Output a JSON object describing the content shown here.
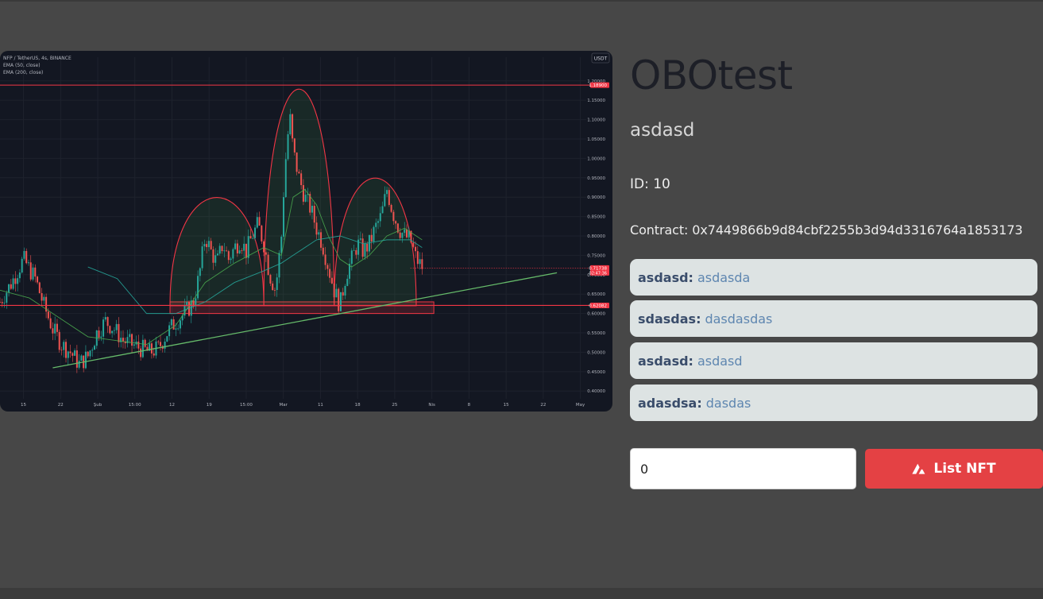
{
  "nft": {
    "title": "OBOtest",
    "description": "asdasd",
    "id_text": "ID: 10",
    "contract_text": "Contract: 0x7449866b9d84cbf2255b3d94d3316764a1853173",
    "attributes": [
      {
        "key": "asdasd:",
        "value": "asdasda"
      },
      {
        "key": "sdasdas:",
        "value": "dasdasdas"
      },
      {
        "key": "asdasd:",
        "value": "asdasd"
      },
      {
        "key": "adasdsa:",
        "value": "dasdas"
      }
    ]
  },
  "listing": {
    "price_value": "0",
    "button_label": "List NFT",
    "button_icon": "avalanche-logo-icon"
  },
  "colors": {
    "page_bg": "#474747",
    "accent_red": "#e44144",
    "attribute_bg": "#dde3e3",
    "chart_bg": "#131722"
  },
  "chart_data": {
    "type": "candlestick",
    "title": "NFP / TetherUS, 4s, BINANCE",
    "indicators": [
      "EMA (50, close)",
      "EMA (200, close)"
    ],
    "currency": "USDT",
    "x_ticks": [
      "15",
      "22",
      "Şub",
      "15:00",
      "12",
      "19",
      "15:00",
      "Mar",
      "11",
      "18",
      "25",
      "Nis",
      "8",
      "15",
      "22",
      "May"
    ],
    "y_ticks": [
      1.2,
      1.15,
      1.1,
      1.05,
      1.0,
      0.95,
      0.9,
      0.85,
      0.8,
      0.75,
      0.7,
      0.65,
      0.6,
      0.55,
      0.5,
      0.45,
      0.4
    ],
    "ylim": [
      0.38,
      1.22
    ],
    "price_labels": [
      {
        "text": "1.18900",
        "value": 1.189
      },
      {
        "text": "0.71738",
        "value": 0.71738,
        "sub": "02:47:36"
      },
      {
        "text": "0.62082",
        "value": 0.62082
      }
    ],
    "close_path": [
      [
        0,
        0.63
      ],
      [
        4,
        0.68
      ],
      [
        8,
        0.74
      ],
      [
        12,
        0.69
      ],
      [
        15,
        0.62
      ],
      [
        18,
        0.56
      ],
      [
        21,
        0.52
      ],
      [
        24,
        0.5
      ],
      [
        27,
        0.47
      ],
      [
        30,
        0.49
      ],
      [
        33,
        0.55
      ],
      [
        36,
        0.58
      ],
      [
        39,
        0.56
      ],
      [
        42,
        0.53
      ],
      [
        45,
        0.52
      ],
      [
        48,
        0.51
      ],
      [
        51,
        0.5
      ],
      [
        54,
        0.51
      ],
      [
        57,
        0.55
      ],
      [
        60,
        0.58
      ],
      [
        63,
        0.6
      ],
      [
        66,
        0.63
      ],
      [
        68,
        0.7
      ],
      [
        70,
        0.8
      ],
      [
        72,
        0.76
      ],
      [
        74,
        0.73
      ],
      [
        76,
        0.78
      ],
      [
        78,
        0.74
      ],
      [
        80,
        0.77
      ],
      [
        82,
        0.79
      ],
      [
        84,
        0.76
      ],
      [
        86,
        0.8
      ],
      [
        88,
        0.83
      ],
      [
        90,
        0.78
      ],
      [
        92,
        0.7
      ],
      [
        94,
        0.66
      ],
      [
        96,
        0.8
      ],
      [
        97,
        0.95
      ],
      [
        98,
        1.05
      ],
      [
        99,
        1.1
      ],
      [
        100,
        1.02
      ],
      [
        102,
        0.95
      ],
      [
        104,
        0.9
      ],
      [
        106,
        0.87
      ],
      [
        108,
        0.82
      ],
      [
        110,
        0.78
      ],
      [
        112,
        0.72
      ],
      [
        114,
        0.66
      ],
      [
        116,
        0.62
      ],
      [
        118,
        0.7
      ],
      [
        120,
        0.74
      ],
      [
        122,
        0.78
      ],
      [
        124,
        0.76
      ],
      [
        126,
        0.78
      ],
      [
        128,
        0.82
      ],
      [
        130,
        0.85
      ],
      [
        132,
        0.92
      ],
      [
        134,
        0.86
      ],
      [
        136,
        0.82
      ],
      [
        138,
        0.8
      ],
      [
        140,
        0.79
      ],
      [
        142,
        0.74
      ],
      [
        144,
        0.72
      ]
    ],
    "ema50": [
      [
        0,
        0.66
      ],
      [
        10,
        0.64
      ],
      [
        20,
        0.59
      ],
      [
        30,
        0.54
      ],
      [
        40,
        0.53
      ],
      [
        50,
        0.52
      ],
      [
        60,
        0.57
      ],
      [
        70,
        0.68
      ],
      [
        80,
        0.73
      ],
      [
        90,
        0.77
      ],
      [
        96,
        0.75
      ],
      [
        100,
        0.9
      ],
      [
        104,
        0.92
      ],
      [
        108,
        0.88
      ],
      [
        112,
        0.8
      ],
      [
        116,
        0.74
      ],
      [
        120,
        0.72
      ],
      [
        126,
        0.75
      ],
      [
        132,
        0.8
      ],
      [
        138,
        0.82
      ],
      [
        144,
        0.79
      ]
    ],
    "ema200": [
      [
        30,
        0.72
      ],
      [
        40,
        0.69
      ],
      [
        50,
        0.6
      ],
      [
        60,
        0.6
      ],
      [
        70,
        0.63
      ],
      [
        80,
        0.68
      ],
      [
        90,
        0.71
      ],
      [
        96,
        0.73
      ],
      [
        100,
        0.75
      ],
      [
        108,
        0.79
      ],
      [
        116,
        0.8
      ],
      [
        124,
        0.78
      ],
      [
        132,
        0.79
      ],
      [
        140,
        0.79
      ],
      [
        144,
        0.77
      ]
    ],
    "annotations": [
      {
        "type": "horizontal-line",
        "value": 1.189
      },
      {
        "type": "horizontal-line",
        "value": 0.62082
      },
      {
        "type": "zone",
        "x_start": 58,
        "x_end": 148,
        "y_low": 0.6,
        "y_high": 0.63
      },
      {
        "type": "trendline",
        "from": [
          18,
          0.46
        ],
        "to": [
          190,
          0.705
        ]
      },
      {
        "type": "arc",
        "label": "left-shoulder",
        "x_start": 58,
        "x_end": 90,
        "peak": 0.9
      },
      {
        "type": "arc",
        "label": "head",
        "x_start": 90,
        "x_end": 114,
        "peak": 1.18
      },
      {
        "type": "arc",
        "label": "right-shoulder",
        "x_start": 114,
        "x_end": 142,
        "peak": 0.95
      }
    ]
  }
}
